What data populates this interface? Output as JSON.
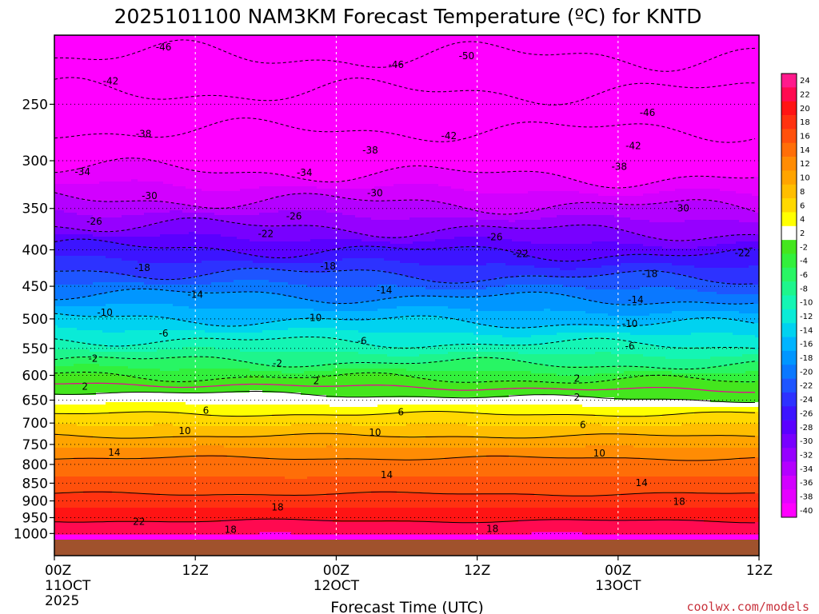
{
  "chart_data": {
    "type": "heatmap",
    "title": "2025101100 NAM3KM Forecast Temperature (ºC) for KNTD",
    "xlabel": "Forecast Time (UTC)",
    "ylabel": "",
    "credit": "coolwx.com/models",
    "x_ticks": [
      {
        "hours": 0,
        "label": "00Z",
        "sub": "11OCT",
        "sub2": "2025"
      },
      {
        "hours": 12,
        "label": "12Z",
        "sub": "",
        "sub2": ""
      },
      {
        "hours": 24,
        "label": "00Z",
        "sub": "12OCT",
        "sub2": ""
      },
      {
        "hours": 36,
        "label": "12Z",
        "sub": "",
        "sub2": ""
      },
      {
        "hours": 48,
        "label": "00Z",
        "sub": "13OCT",
        "sub2": ""
      },
      {
        "hours": 60,
        "label": "12Z",
        "sub": "",
        "sub2": ""
      }
    ],
    "x_range_hours": [
      0,
      60
    ],
    "y_ticks": [
      250,
      300,
      350,
      400,
      450,
      500,
      550,
      600,
      650,
      700,
      750,
      800,
      850,
      900,
      950,
      1000
    ],
    "y_range_hpa": [
      200,
      1020
    ],
    "y_scale": "log",
    "grid": true,
    "colorbar": {
      "levels": [
        24,
        22,
        20,
        18,
        16,
        14,
        12,
        10,
        8,
        6,
        4,
        2,
        -2,
        -4,
        -6,
        -8,
        -10,
        -12,
        -14,
        -16,
        -18,
        -20,
        -22,
        -24,
        -26,
        -28,
        -30,
        -32,
        -34,
        -36,
        -38,
        -40
      ],
      "colors": [
        "#ff1a8c",
        "#ff0a50",
        "#ff1414",
        "#ff3210",
        "#ff500c",
        "#ff6e08",
        "#ff8c04",
        "#ffa400",
        "#ffbe00",
        "#ffd800",
        "#ffff00",
        "#ffffff",
        "#44e61e",
        "#32f03c",
        "#28f564",
        "#1ef58c",
        "#14f5b4",
        "#0aebd7",
        "#00d2f0",
        "#00b4ff",
        "#0096ff",
        "#0a78ff",
        "#1e55ff",
        "#2d32ff",
        "#3c14ff",
        "#5a00ff",
        "#7800ff",
        "#9600ff",
        "#b400ff",
        "#d200ff",
        "#e600ff",
        "#ff00ff"
      ]
    },
    "contour_labels": [
      {
        "value": "-46",
        "hours": 9.3,
        "hpa": 208
      },
      {
        "value": "-46",
        "hours": 29.1,
        "hpa": 220
      },
      {
        "value": "-50",
        "hours": 35.1,
        "hpa": 214
      },
      {
        "value": "-46",
        "hours": 50.5,
        "hpa": 257
      },
      {
        "value": "-42",
        "hours": 4.8,
        "hpa": 232
      },
      {
        "value": "-42",
        "hours": 33.6,
        "hpa": 277
      },
      {
        "value": "-42",
        "hours": 49.3,
        "hpa": 286
      },
      {
        "value": "-38",
        "hours": 7.6,
        "hpa": 275
      },
      {
        "value": "-38",
        "hours": 26.9,
        "hpa": 290
      },
      {
        "value": "-38",
        "hours": 48.1,
        "hpa": 306
      },
      {
        "value": "-34",
        "hours": 2.4,
        "hpa": 311
      },
      {
        "value": "-34",
        "hours": 21.3,
        "hpa": 312
      },
      {
        "value": "-30",
        "hours": 8.1,
        "hpa": 336
      },
      {
        "value": "-30",
        "hours": 27.3,
        "hpa": 333
      },
      {
        "value": "-30",
        "hours": 53.4,
        "hpa": 350
      },
      {
        "value": "-26",
        "hours": 3.4,
        "hpa": 365
      },
      {
        "value": "-26",
        "hours": 20.4,
        "hpa": 359
      },
      {
        "value": "-26",
        "hours": 37.5,
        "hpa": 384
      },
      {
        "value": "-22",
        "hours": 18.0,
        "hpa": 380
      },
      {
        "value": "-22",
        "hours": 39.7,
        "hpa": 405
      },
      {
        "value": "-22",
        "hours": 58.6,
        "hpa": 404
      },
      {
        "value": "-18",
        "hours": 7.5,
        "hpa": 424
      },
      {
        "value": "-18",
        "hours": 23.3,
        "hpa": 422
      },
      {
        "value": "-18",
        "hours": 50.7,
        "hpa": 432
      },
      {
        "value": "-14",
        "hours": 12.0,
        "hpa": 462
      },
      {
        "value": "-14",
        "hours": 28.1,
        "hpa": 456
      },
      {
        "value": "-14",
        "hours": 49.5,
        "hpa": 470
      },
      {
        "value": "-10",
        "hours": 4.3,
        "hpa": 490
      },
      {
        "value": "-10",
        "hours": 22.1,
        "hpa": 498
      },
      {
        "value": "-10",
        "hours": 49.0,
        "hpa": 508
      },
      {
        "value": "-6",
        "hours": 9.3,
        "hpa": 524
      },
      {
        "value": "-6",
        "hours": 26.2,
        "hpa": 537
      },
      {
        "value": "-6",
        "hours": 49.0,
        "hpa": 546
      },
      {
        "value": "-2",
        "hours": 3.3,
        "hpa": 568
      },
      {
        "value": "-2",
        "hours": 19.0,
        "hpa": 577
      },
      {
        "value": "2",
        "hours": 2.6,
        "hpa": 622
      },
      {
        "value": "2",
        "hours": 22.3,
        "hpa": 611
      },
      {
        "value": "2",
        "hours": 44.5,
        "hpa": 606
      },
      {
        "value": "2",
        "hours": 44.5,
        "hpa": 644
      },
      {
        "value": "6",
        "hours": 12.9,
        "hpa": 672
      },
      {
        "value": "6",
        "hours": 29.5,
        "hpa": 676
      },
      {
        "value": "6",
        "hours": 45.0,
        "hpa": 704
      },
      {
        "value": "10",
        "hours": 11.1,
        "hpa": 718
      },
      {
        "value": "10",
        "hours": 27.3,
        "hpa": 722
      },
      {
        "value": "10",
        "hours": 46.4,
        "hpa": 772
      },
      {
        "value": "14",
        "hours": 5.1,
        "hpa": 770
      },
      {
        "value": "14",
        "hours": 28.3,
        "hpa": 828
      },
      {
        "value": "14",
        "hours": 50.0,
        "hpa": 849
      },
      {
        "value": "18",
        "hours": 19.0,
        "hpa": 919
      },
      {
        "value": "18",
        "hours": 15.0,
        "hpa": 988
      },
      {
        "value": "18",
        "hours": 37.3,
        "hpa": 985
      },
      {
        "value": "18",
        "hours": 53.2,
        "hpa": 902
      },
      {
        "value": "22",
        "hours": 7.2,
        "hpa": 962
      }
    ]
  }
}
